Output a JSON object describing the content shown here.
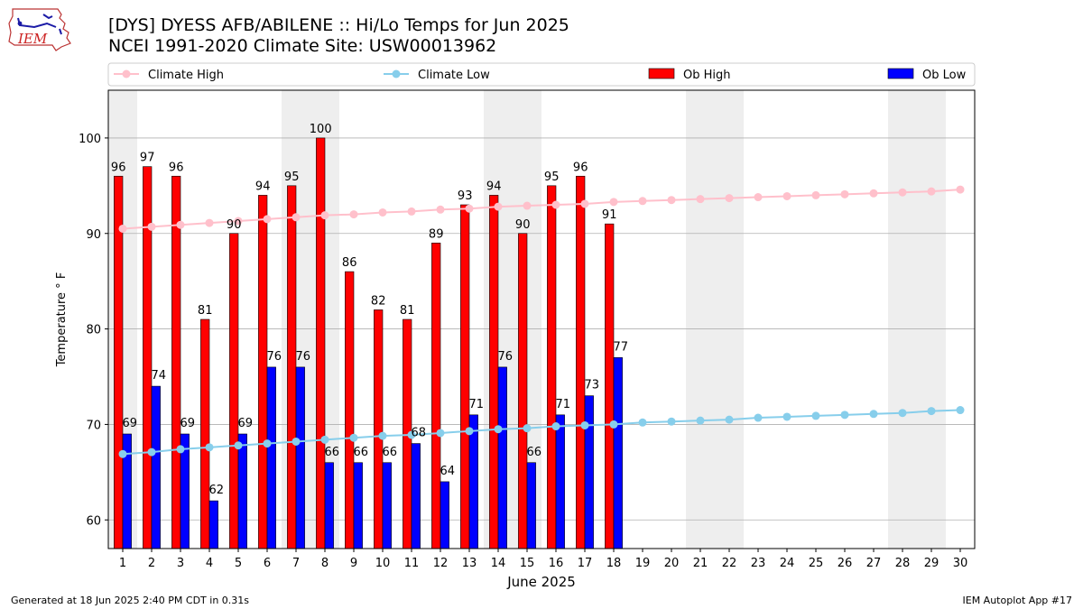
{
  "header": {
    "title_line1": "[DYS] DYESS AFB/ABILENE :: Hi/Lo Temps for Jun 2025",
    "title_line2": "NCEI 1991-2020 Climate Site: USW00013962"
  },
  "logo": {
    "text": "IEM",
    "icon": "iem-logo-icon"
  },
  "footer": {
    "generated": "Generated at 18 Jun 2025 2:40 PM CDT in 0.31s",
    "app": "IEM Autoplot App #17"
  },
  "colors": {
    "ob_high": "#ff0000",
    "ob_low": "#0000ff",
    "climate_high": "#ffc0cb",
    "climate_low": "#87ceeb",
    "weekend_band": "#eeeeee",
    "grid": "#b0b0b0"
  },
  "chart_data": {
    "type": "bar",
    "title": "[DYS] DYESS AFB/ABILENE :: Hi/Lo Temps for Jun 2025",
    "subtitle": "NCEI 1991-2020 Climate Site: USW00013962",
    "xlabel": "June 2025",
    "ylabel": "Temperature $^\\circ$F",
    "ylabel_display": "Temperature ° F",
    "xlim": [
      0.5,
      30.5
    ],
    "ylim": [
      57,
      105
    ],
    "yticks": [
      60,
      70,
      80,
      90,
      100
    ],
    "grid": "y",
    "legend": {
      "placement": "top",
      "entries": [
        "Climate High",
        "Climate Low",
        "Ob High",
        "Ob Low"
      ]
    },
    "days": [
      1,
      2,
      3,
      4,
      5,
      6,
      7,
      8,
      9,
      10,
      11,
      12,
      13,
      14,
      15,
      16,
      17,
      18,
      19,
      20,
      21,
      22,
      23,
      24,
      25,
      26,
      27,
      28,
      29,
      30
    ],
    "weekend_days": [
      1,
      7,
      8,
      14,
      15,
      21,
      22,
      28,
      29
    ],
    "series": [
      {
        "name": "Ob High",
        "kind": "bar",
        "days": [
          1,
          2,
          3,
          4,
          5,
          6,
          7,
          8,
          9,
          10,
          11,
          12,
          13,
          14,
          15,
          16,
          17,
          18
        ],
        "values": [
          96,
          97,
          96,
          81,
          90,
          94,
          95,
          100,
          86,
          82,
          81,
          89,
          93,
          94,
          90,
          95,
          96,
          91
        ]
      },
      {
        "name": "Ob Low",
        "kind": "bar",
        "days": [
          1,
          2,
          3,
          4,
          5,
          6,
          7,
          8,
          9,
          10,
          11,
          12,
          13,
          14,
          15,
          16,
          17,
          18
        ],
        "values": [
          69,
          74,
          69,
          62,
          69,
          76,
          76,
          66,
          66,
          66,
          68,
          64,
          71,
          76,
          66,
          71,
          73,
          77
        ]
      },
      {
        "name": "Climate High",
        "kind": "line",
        "days": [
          1,
          2,
          3,
          4,
          5,
          6,
          7,
          8,
          9,
          10,
          11,
          12,
          13,
          14,
          15,
          16,
          17,
          18,
          19,
          20,
          21,
          22,
          23,
          24,
          25,
          26,
          27,
          28,
          29,
          30
        ],
        "values": [
          90.5,
          90.7,
          90.9,
          91.1,
          91.3,
          91.5,
          91.7,
          91.9,
          92.0,
          92.2,
          92.3,
          92.5,
          92.6,
          92.8,
          92.9,
          93.0,
          93.1,
          93.3,
          93.4,
          93.5,
          93.6,
          93.7,
          93.8,
          93.9,
          94.0,
          94.1,
          94.2,
          94.3,
          94.4,
          94.6
        ]
      },
      {
        "name": "Climate Low",
        "kind": "line",
        "days": [
          1,
          2,
          3,
          4,
          5,
          6,
          7,
          8,
          9,
          10,
          11,
          12,
          13,
          14,
          15,
          16,
          17,
          18,
          19,
          20,
          21,
          22,
          23,
          24,
          25,
          26,
          27,
          28,
          29,
          30
        ],
        "values": [
          66.9,
          67.1,
          67.4,
          67.6,
          67.8,
          68.0,
          68.2,
          68.4,
          68.6,
          68.8,
          68.9,
          69.1,
          69.3,
          69.5,
          69.6,
          69.8,
          69.9,
          70.0,
          70.2,
          70.3,
          70.4,
          70.5,
          70.7,
          70.8,
          70.9,
          71.0,
          71.1,
          71.2,
          71.4,
          71.5
        ]
      }
    ]
  }
}
